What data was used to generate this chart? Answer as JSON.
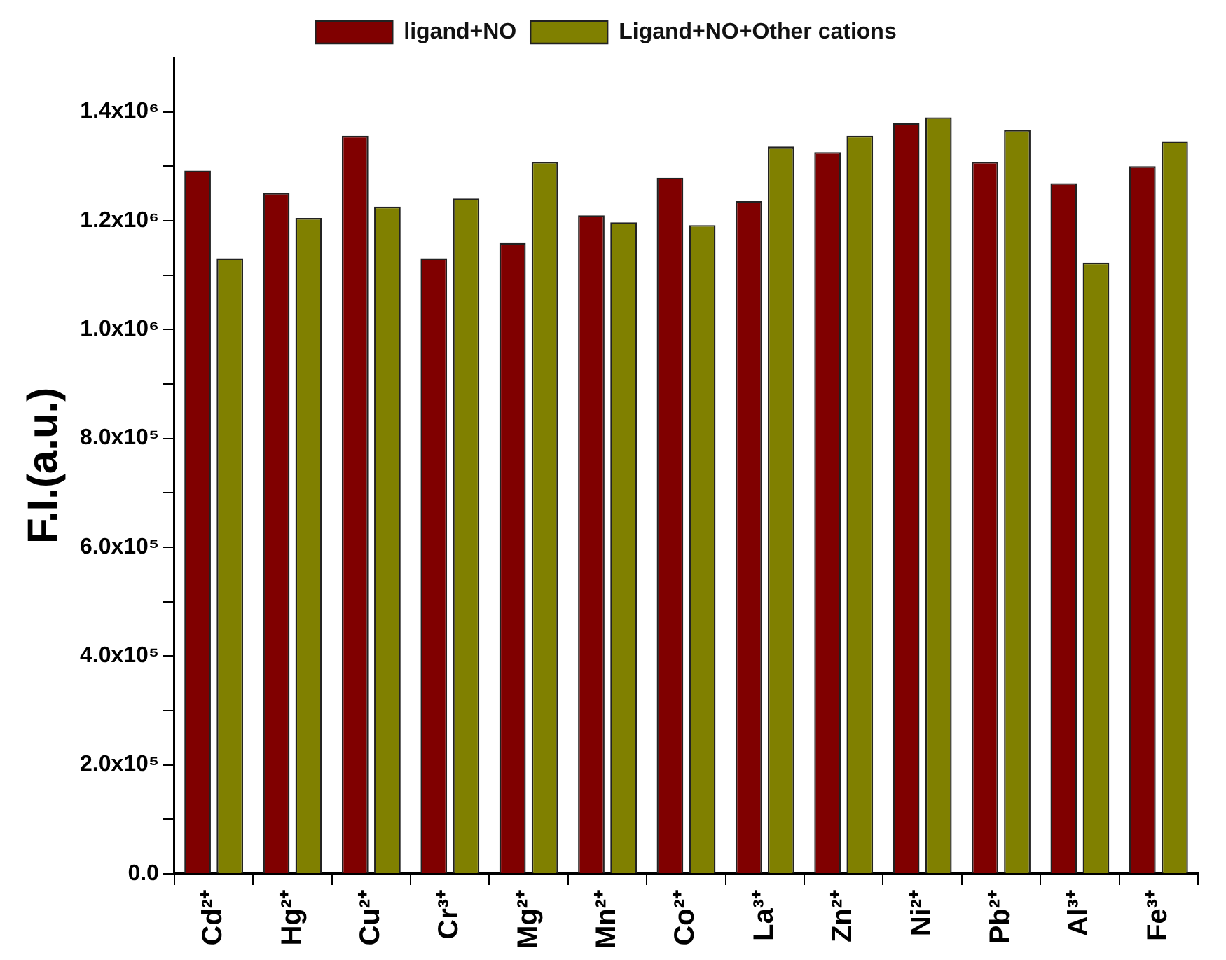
{
  "chart_data": {
    "type": "bar",
    "ylabel": "F.I.(a.u.)",
    "categories": [
      "Cd²⁺",
      "Hg²⁺",
      "Cu²⁺",
      "Cr³⁺",
      "Mg²⁺",
      "Mn²⁺",
      "Co²⁺",
      "La³⁺",
      "Zn²⁺",
      "Ni²⁺",
      "Pb²⁺",
      "Al³⁺",
      "Fe³⁺"
    ],
    "series": [
      {
        "name": "ligand+NO",
        "color": "#800000",
        "values": [
          1292000,
          1251000,
          1356000,
          1131000,
          1159000,
          1210000,
          1279000,
          1236000,
          1326000,
          1379000,
          1308000,
          1269000,
          1300000
        ]
      },
      {
        "name": "Ligand+NO+Other cations",
        "color": "#808000",
        "values": [
          1131000,
          1205000,
          1226000,
          1241000,
          1308000,
          1197000,
          1192000,
          1336000,
          1356000,
          1390000,
          1367000,
          1123000,
          1346000
        ]
      }
    ],
    "ylim": [
      0,
      1500000
    ],
    "yticks": [
      {
        "value": 0,
        "label": "0.0"
      },
      {
        "value": 100000,
        "label": null
      },
      {
        "value": 200000,
        "label": "2.0x10⁵"
      },
      {
        "value": 300000,
        "label": null
      },
      {
        "value": 400000,
        "label": "4.0x10⁵"
      },
      {
        "value": 500000,
        "label": null
      },
      {
        "value": 600000,
        "label": "6.0x10⁵"
      },
      {
        "value": 700000,
        "label": null
      },
      {
        "value": 800000,
        "label": "8.0x10⁵"
      },
      {
        "value": 900000,
        "label": null
      },
      {
        "value": 1000000,
        "label": "1.0x10⁶"
      },
      {
        "value": 1100000,
        "label": null
      },
      {
        "value": 1200000,
        "label": "1.2x10⁶"
      },
      {
        "value": 1300000,
        "label": null
      },
      {
        "value": 1400000,
        "label": "1.4x10⁶"
      }
    ],
    "grid": false,
    "legend": "top"
  }
}
